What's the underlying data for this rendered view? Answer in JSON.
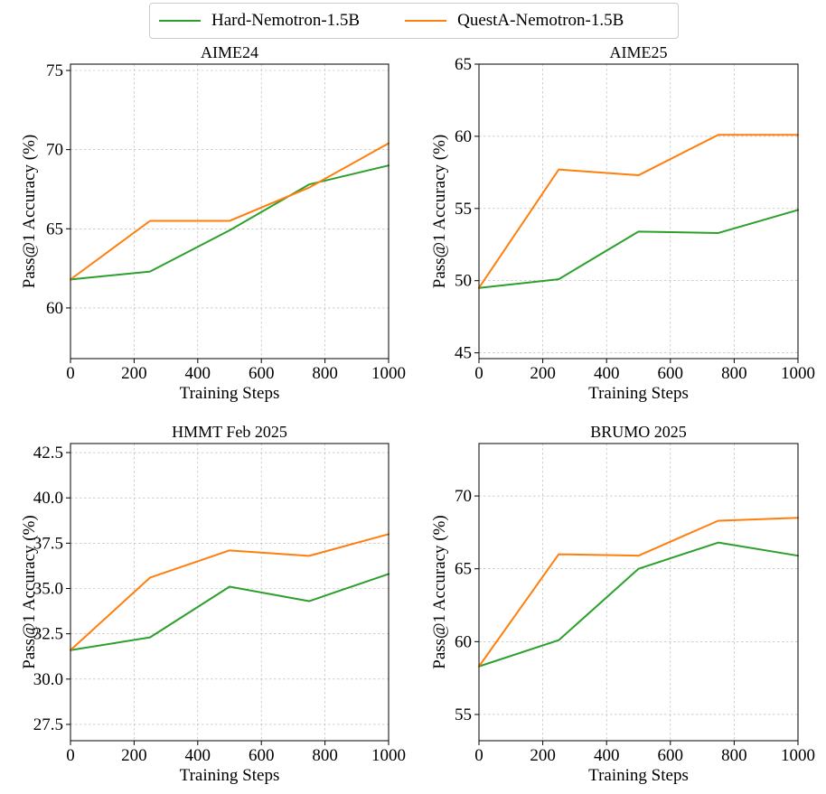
{
  "legend": {
    "hard_label": "Hard-Nemotron-1.5B",
    "questa_label": "QuestA-Nemotron-1.5B",
    "hard_color": "#2ca02c",
    "questa_color": "#ff7f0e"
  },
  "chart_data": [
    {
      "type": "line",
      "title": "AIME24",
      "xlabel": "Training Steps",
      "ylabel": "Pass@1 Accuracy (%)",
      "x": [
        0,
        250,
        500,
        750,
        1000
      ],
      "xlim": [
        0,
        1000
      ],
      "xticks": [
        0,
        200,
        400,
        600,
        800,
        1000
      ],
      "ylim": [
        56.8,
        75.4
      ],
      "yticks": [
        60,
        65,
        70,
        75
      ],
      "ytick_labels": [
        "60",
        "65",
        "70",
        "75"
      ],
      "grid": true,
      "series": [
        {
          "name": "Hard-Nemotron-1.5B",
          "color": "#2ca02c",
          "values": [
            61.8,
            62.3,
            64.9,
            67.8,
            69.0
          ]
        },
        {
          "name": "QuestA-Nemotron-1.5B",
          "color": "#ff7f0e",
          "values": [
            61.8,
            65.5,
            65.5,
            67.6,
            70.4
          ]
        }
      ]
    },
    {
      "type": "line",
      "title": "AIME25",
      "xlabel": "Training Steps",
      "ylabel": "Pass@1 Accuracy (%)",
      "x": [
        0,
        250,
        500,
        750,
        1000
      ],
      "xlim": [
        0,
        1000
      ],
      "xticks": [
        0,
        200,
        400,
        600,
        800,
        1000
      ],
      "ylim": [
        44.6,
        65.0
      ],
      "yticks": [
        45,
        50,
        55,
        60,
        65
      ],
      "ytick_labels": [
        "45",
        "50",
        "55",
        "60",
        "65"
      ],
      "grid": true,
      "series": [
        {
          "name": "Hard-Nemotron-1.5B",
          "color": "#2ca02c",
          "values": [
            49.5,
            50.1,
            53.4,
            53.3,
            54.9
          ]
        },
        {
          "name": "QuestA-Nemotron-1.5B",
          "color": "#ff7f0e",
          "values": [
            49.5,
            57.7,
            57.3,
            60.1,
            60.1
          ]
        }
      ]
    },
    {
      "type": "line",
      "title": "HMMT Feb 2025",
      "xlabel": "Training Steps",
      "ylabel": "Pass@1 Accuracy (%)",
      "x": [
        0,
        250,
        500,
        750,
        1000
      ],
      "xlim": [
        0,
        1000
      ],
      "xticks": [
        0,
        200,
        400,
        600,
        800,
        1000
      ],
      "ylim": [
        26.6,
        43.0
      ],
      "yticks": [
        27.5,
        30.0,
        32.5,
        35.0,
        37.5,
        40.0,
        42.5
      ],
      "ytick_labels": [
        "27.5",
        "30.0",
        "32.5",
        "35.0",
        "37.5",
        "40.0",
        "42.5"
      ],
      "grid": true,
      "series": [
        {
          "name": "Hard-Nemotron-1.5B",
          "color": "#2ca02c",
          "values": [
            31.6,
            32.3,
            35.1,
            34.3,
            35.8
          ]
        },
        {
          "name": "QuestA-Nemotron-1.5B",
          "color": "#ff7f0e",
          "values": [
            31.6,
            35.6,
            37.1,
            36.8,
            38.0
          ]
        }
      ]
    },
    {
      "type": "line",
      "title": "BRUMO 2025",
      "xlabel": "Training Steps",
      "ylabel": "Pass@1 Accuracy (%)",
      "x": [
        0,
        250,
        500,
        750,
        1000
      ],
      "xlim": [
        0,
        1000
      ],
      "xticks": [
        0,
        200,
        400,
        600,
        800,
        1000
      ],
      "ylim": [
        53.2,
        73.6
      ],
      "yticks": [
        55,
        60,
        65,
        70
      ],
      "ytick_labels": [
        "55",
        "60",
        "65",
        "70"
      ],
      "grid": true,
      "series": [
        {
          "name": "Hard-Nemotron-1.5B",
          "color": "#2ca02c",
          "values": [
            58.3,
            60.1,
            65.0,
            66.8,
            65.9
          ]
        },
        {
          "name": "QuestA-Nemotron-1.5B",
          "color": "#ff7f0e",
          "values": [
            58.3,
            66.0,
            65.9,
            68.3,
            68.5
          ]
        }
      ]
    }
  ]
}
